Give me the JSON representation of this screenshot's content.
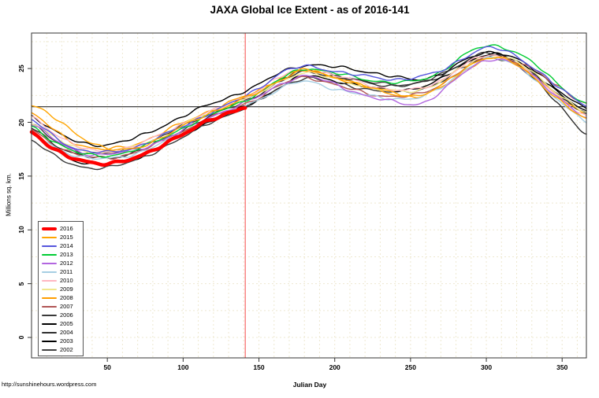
{
  "title": "JAXA Global Ice Extent - as of 2016-141",
  "footer": {
    "url": "http://sunshinehours.wordpress.com"
  },
  "chart_data": {
    "type": "line",
    "title": "JAXA Global Ice Extent - as of 2016-141",
    "xlabel": "Julian Day",
    "ylabel": "Millions sq. km.",
    "xlim": [
      0,
      366
    ],
    "ylim": [
      -1.9,
      28.3
    ],
    "x_ticks": [
      50,
      100,
      150,
      200,
      250,
      300,
      350
    ],
    "y_ticks": [
      0,
      5,
      10,
      15,
      20,
      25
    ],
    "grid": true,
    "grid_color": "#eee8d0",
    "grid_x_step_days": 10,
    "grid_y_step_units": 2.5,
    "legend_position": "left-middle",
    "annotations": {
      "vline_day": 141,
      "vline_color": "#f87c7c",
      "hline_value": 21.45,
      "hline_color": "#2a2a2a",
      "hline_meaning": "current 2016 extent",
      "vline_meaning": "day 141 (as-of date)"
    },
    "control_days": [
      0,
      15,
      30,
      45,
      60,
      75,
      90,
      105,
      120,
      135,
      150,
      165,
      180,
      195,
      210,
      225,
      240,
      255,
      270,
      285,
      300,
      315,
      330,
      345,
      366
    ],
    "series": [
      {
        "name": "2002",
        "color": "#404040",
        "width": 1.4,
        "values": [
          19.8,
          18.3,
          17.4,
          17.1,
          17.3,
          18.0,
          19.0,
          20.0,
          20.9,
          21.8,
          22.8,
          24.0,
          24.8,
          24.5,
          24.1,
          23.7,
          23.5,
          23.7,
          24.4,
          25.5,
          26.2,
          25.8,
          24.6,
          22.8,
          20.8
        ]
      },
      {
        "name": "2003",
        "color": "#000000",
        "width": 1.4,
        "values": [
          20.6,
          19.2,
          18.2,
          17.9,
          18.2,
          18.9,
          19.9,
          20.9,
          21.8,
          22.6,
          23.5,
          24.7,
          25.3,
          25.2,
          25.0,
          24.6,
          24.2,
          24.0,
          24.5,
          25.7,
          26.5,
          26.2,
          25.0,
          23.3,
          21.3
        ]
      },
      {
        "name": "2004",
        "color": "#2e2e2e",
        "width": 1.4,
        "values": [
          19.5,
          18.0,
          17.0,
          16.7,
          16.9,
          17.6,
          18.6,
          19.7,
          20.7,
          21.6,
          22.6,
          23.9,
          24.7,
          24.4,
          24.0,
          23.6,
          23.4,
          23.6,
          24.3,
          25.6,
          26.4,
          25.9,
          24.2,
          22.0,
          19.0
        ]
      },
      {
        "name": "2005",
        "color": "#000000",
        "width": 1.4,
        "values": [
          18.9,
          17.4,
          16.4,
          16.1,
          16.3,
          17.0,
          18.1,
          19.2,
          20.2,
          21.1,
          22.1,
          23.4,
          24.3,
          24.0,
          23.6,
          23.2,
          23.0,
          23.2,
          24.0,
          25.4,
          26.3,
          26.0,
          24.8,
          23.0,
          21.0
        ]
      },
      {
        "name": "2006",
        "color": "#3a3a3a",
        "width": 1.4,
        "values": [
          18.4,
          16.9,
          15.9,
          15.8,
          16.1,
          16.8,
          17.9,
          19.0,
          20.1,
          21.0,
          22.0,
          23.3,
          24.1,
          23.8,
          23.4,
          23.0,
          22.8,
          23.0,
          23.8,
          25.1,
          26.0,
          25.7,
          24.5,
          22.8,
          20.8
        ]
      },
      {
        "name": "2007",
        "color": "#b05555",
        "width": 1.4,
        "values": [
          19.3,
          17.9,
          17.0,
          16.7,
          16.9,
          17.5,
          18.5,
          19.5,
          20.5,
          21.4,
          22.3,
          23.5,
          24.2,
          23.7,
          23.1,
          22.6,
          22.4,
          22.6,
          23.5,
          25.0,
          26.0,
          25.9,
          25.0,
          23.5,
          21.8
        ]
      },
      {
        "name": "2008",
        "color": "#ff9d00",
        "width": 1.4,
        "values": [
          20.8,
          19.3,
          18.0,
          17.5,
          17.7,
          18.3,
          19.3,
          20.3,
          21.2,
          22.1,
          23.0,
          24.2,
          24.8,
          24.4,
          23.8,
          23.1,
          22.6,
          22.4,
          23.2,
          24.7,
          25.9,
          25.7,
          24.5,
          22.7,
          20.7
        ]
      },
      {
        "name": "2009",
        "color": "#f0e68c",
        "width": 1.4,
        "values": [
          20.0,
          18.6,
          17.6,
          17.2,
          17.4,
          18.1,
          19.1,
          20.1,
          21.0,
          21.8,
          22.7,
          23.9,
          24.6,
          24.2,
          23.7,
          23.2,
          22.9,
          23.0,
          23.8,
          25.2,
          26.1,
          25.9,
          24.7,
          22.9,
          20.9
        ]
      },
      {
        "name": "2010",
        "color": "#ffb6c1",
        "width": 1.4,
        "values": [
          20.5,
          19.0,
          17.8,
          17.3,
          17.5,
          18.2,
          19.2,
          20.2,
          21.1,
          22.0,
          23.0,
          24.3,
          24.9,
          24.5,
          24.0,
          23.4,
          23.0,
          23.1,
          23.9,
          25.3,
          26.2,
          25.8,
          24.4,
          22.6,
          20.6
        ]
      },
      {
        "name": "2011",
        "color": "#a6cee3",
        "width": 1.4,
        "values": [
          18.9,
          17.7,
          16.9,
          16.6,
          16.8,
          17.4,
          18.4,
          19.4,
          20.4,
          21.2,
          22.1,
          23.2,
          23.8,
          23.3,
          22.8,
          22.4,
          22.2,
          22.3,
          23.2,
          24.8,
          25.9,
          25.6,
          24.3,
          22.3,
          20.1
        ]
      },
      {
        "name": "2012",
        "color": "#b266e0",
        "width": 1.4,
        "values": [
          19.9,
          18.4,
          17.3,
          17.0,
          17.2,
          17.7,
          18.6,
          19.6,
          20.6,
          21.5,
          22.4,
          23.6,
          24.3,
          23.8,
          23.0,
          22.3,
          21.9,
          21.7,
          22.8,
          24.6,
          25.8,
          25.6,
          24.4,
          22.6,
          20.4
        ]
      },
      {
        "name": "2013",
        "color": "#00cc33",
        "width": 1.4,
        "values": [
          19.6,
          18.2,
          17.2,
          16.9,
          17.1,
          17.8,
          18.8,
          19.8,
          20.8,
          21.7,
          22.7,
          24.1,
          25.0,
          24.7,
          24.3,
          23.9,
          23.7,
          23.9,
          24.7,
          26.2,
          27.1,
          26.8,
          25.6,
          23.8,
          21.7
        ]
      },
      {
        "name": "2014",
        "color": "#5555dd",
        "width": 1.4,
        "values": [
          20.2,
          18.7,
          17.5,
          17.2,
          17.4,
          18.0,
          19.0,
          20.0,
          21.0,
          22.0,
          23.2,
          24.6,
          25.2,
          24.9,
          24.5,
          24.2,
          24.0,
          24.2,
          24.8,
          26.0,
          26.9,
          26.5,
          25.2,
          23.5,
          21.6
        ]
      },
      {
        "name": "2015",
        "color": "#ffa500",
        "width": 1.4,
        "values": [
          21.6,
          20.4,
          18.9,
          17.8,
          17.4,
          17.9,
          18.9,
          20.0,
          21.0,
          21.9,
          22.8,
          24.0,
          24.9,
          24.3,
          23.8,
          23.2,
          22.7,
          22.5,
          23.4,
          24.9,
          26.0,
          25.7,
          24.3,
          22.4,
          20.3
        ]
      },
      {
        "name": "2016",
        "color": "#ff0000",
        "width": 4.5,
        "days": [
          0,
          15,
          30,
          45,
          60,
          75,
          90,
          105,
          120,
          135,
          141
        ],
        "values": [
          19.1,
          17.5,
          16.5,
          16.2,
          16.4,
          17.0,
          18.2,
          19.3,
          20.3,
          21.1,
          21.45
        ]
      }
    ]
  }
}
